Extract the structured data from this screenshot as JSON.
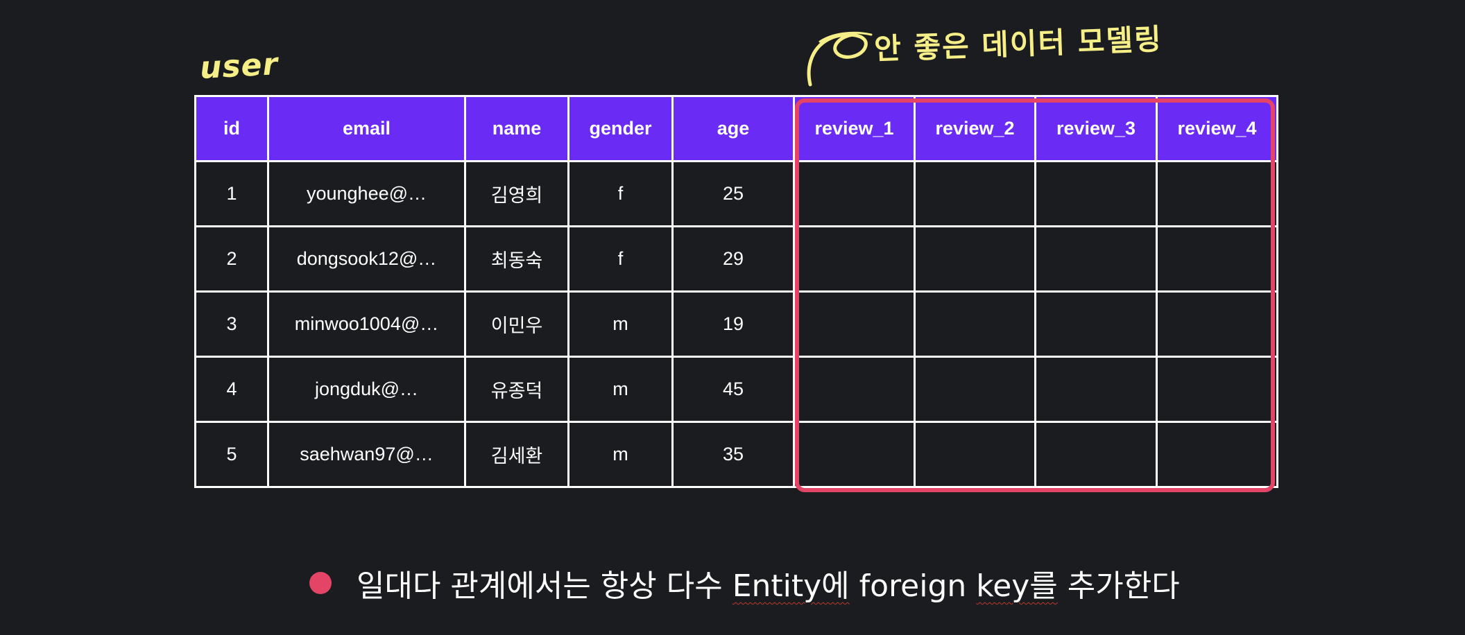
{
  "table_caption": "user",
  "annotation": "안 좋은 데이터 모델링",
  "table": {
    "columns": [
      "id",
      "email",
      "name",
      "gender",
      "age",
      "review_1",
      "review_2",
      "review_3",
      "review_4"
    ],
    "rows": [
      [
        "1",
        "younghee@…",
        "김영희",
        "f",
        "25",
        "",
        "",
        "",
        ""
      ],
      [
        "2",
        "dongsook12@…",
        "최동숙",
        "f",
        "29",
        "",
        "",
        "",
        ""
      ],
      [
        "3",
        "minwoo1004@…",
        "이민우",
        "m",
        "19",
        "",
        "",
        "",
        ""
      ],
      [
        "4",
        "jongduk@…",
        "유종덕",
        "m",
        "45",
        "",
        "",
        "",
        ""
      ],
      [
        "5",
        "saehwan97@…",
        "김세환",
        "m",
        "35",
        "",
        "",
        "",
        ""
      ]
    ]
  },
  "bullet": {
    "part1": "일대다 관계에서는 항상 다수 ",
    "part2": "Entity에",
    "part3": " foreign ",
    "part4": "key를",
    "part5": " 추가한다"
  },
  "colors": {
    "header_bg": "#6a2bf5",
    "background": "#1b1c20",
    "highlight": "#e44466",
    "annotation": "#f6ee86"
  }
}
